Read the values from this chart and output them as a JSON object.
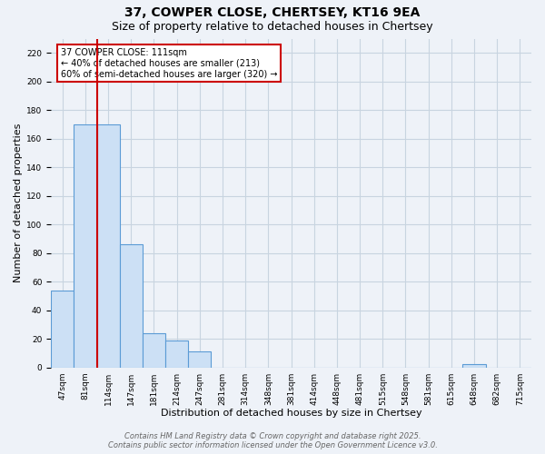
{
  "title": "37, COWPER CLOSE, CHERTSEY, KT16 9EA",
  "subtitle": "Size of property relative to detached houses in Chertsey",
  "xlabel": "Distribution of detached houses by size in Chertsey",
  "ylabel": "Number of detached properties",
  "bin_labels": [
    "47sqm",
    "81sqm",
    "114sqm",
    "147sqm",
    "181sqm",
    "214sqm",
    "247sqm",
    "281sqm",
    "314sqm",
    "348sqm",
    "381sqm",
    "414sqm",
    "448sqm",
    "481sqm",
    "515sqm",
    "548sqm",
    "581sqm",
    "615sqm",
    "648sqm",
    "682sqm",
    "715sqm"
  ],
  "counts": [
    54,
    170,
    170,
    86,
    24,
    19,
    11,
    0,
    0,
    0,
    0,
    0,
    0,
    0,
    0,
    0,
    0,
    0,
    2,
    0,
    0
  ],
  "bar_facecolor": "#cce0f5",
  "bar_edgecolor": "#5b9bd5",
  "grid_color": "#c8d4e0",
  "background_color": "#eef2f8",
  "red_line_after_bar": 1,
  "property_label": "37 COWPER CLOSE: 111sqm",
  "annotation_line1": "← 40% of detached houses are smaller (213)",
  "annotation_line2": "60% of semi-detached houses are larger (320) →",
  "annotation_box_color": "#ffffff",
  "annotation_border_color": "#cc0000",
  "red_line_color": "#cc0000",
  "ylim": [
    0,
    230
  ],
  "yticks": [
    0,
    20,
    40,
    60,
    80,
    100,
    120,
    140,
    160,
    180,
    200,
    220
  ],
  "footer_line1": "Contains HM Land Registry data © Crown copyright and database right 2025.",
  "footer_line2": "Contains public sector information licensed under the Open Government Licence v3.0.",
  "title_fontsize": 10,
  "subtitle_fontsize": 9,
  "axis_label_fontsize": 8,
  "tick_fontsize": 6.5,
  "annotation_fontsize": 7,
  "footer_fontsize": 6
}
